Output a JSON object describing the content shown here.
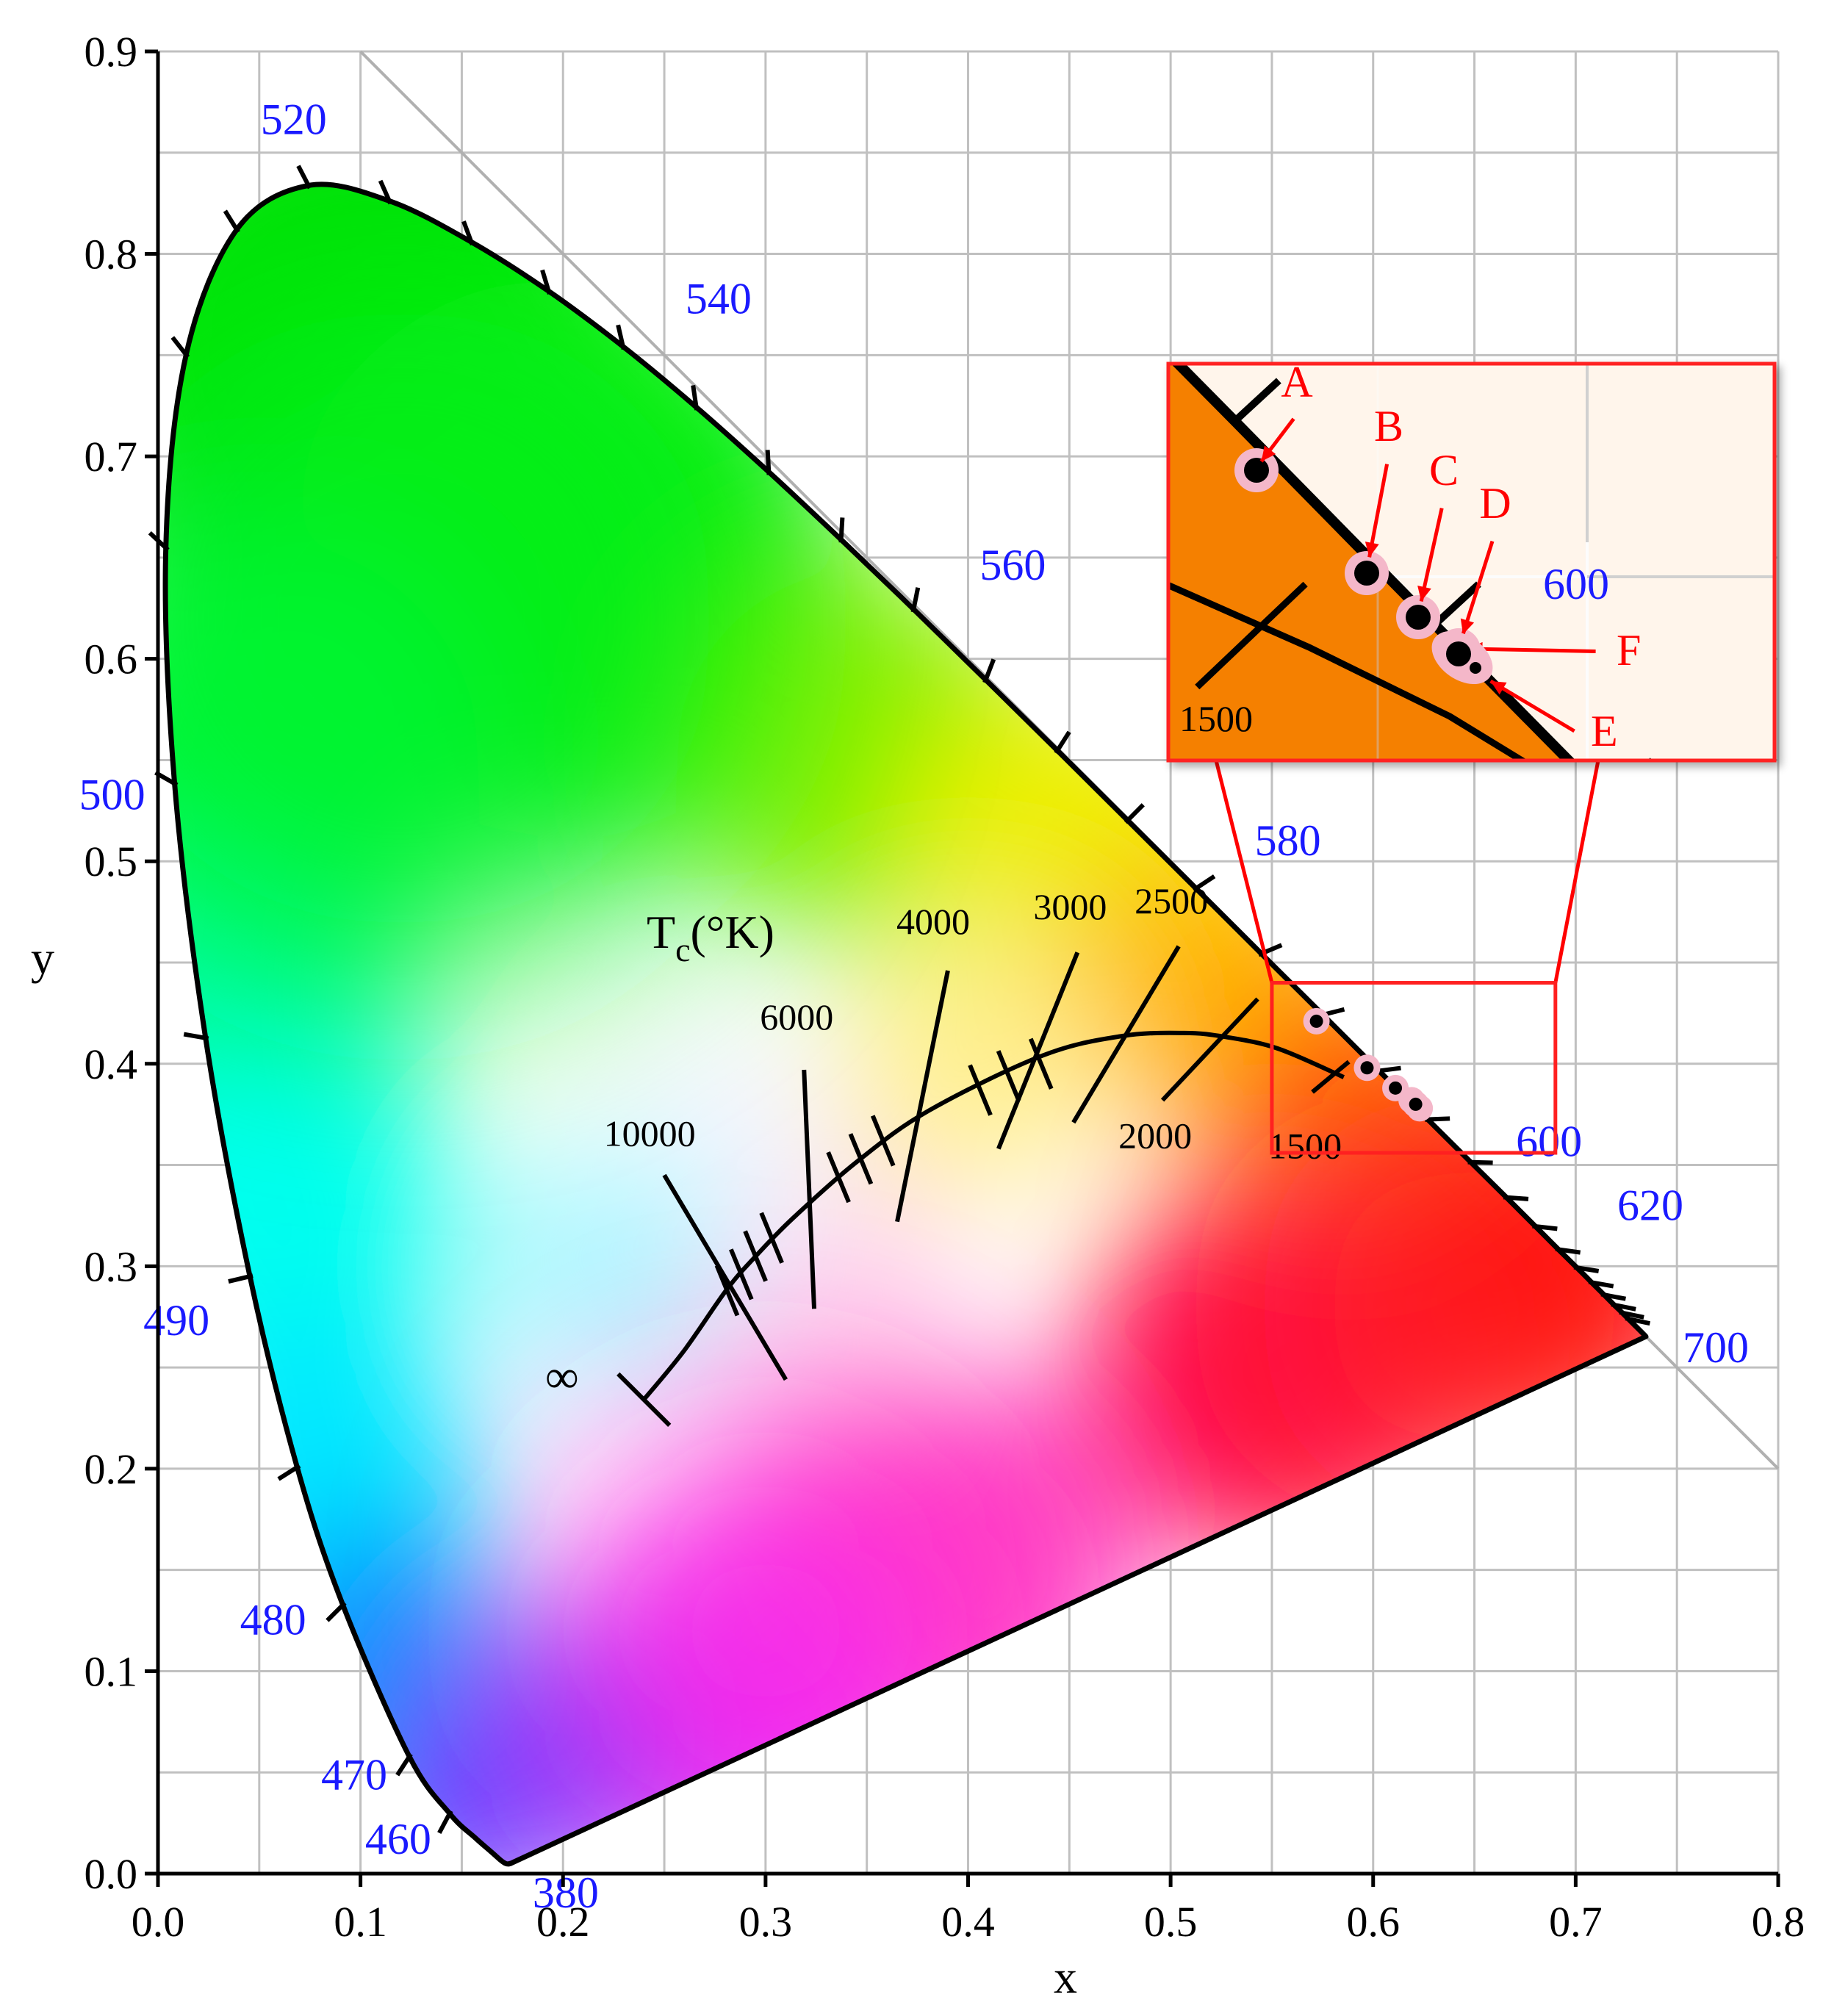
{
  "chart_data": {
    "type": "scatter",
    "title": "",
    "xlabel": "x",
    "ylabel": "y",
    "xlim": [
      0.0,
      0.8
    ],
    "ylim": [
      0.0,
      0.9
    ],
    "x_ticks": [
      "0.0",
      "0.1",
      "0.2",
      "0.3",
      "0.4",
      "0.5",
      "0.6",
      "0.7",
      "0.8"
    ],
    "y_ticks": [
      "0.0",
      "0.1",
      "0.2",
      "0.3",
      "0.4",
      "0.5",
      "0.6",
      "0.7",
      "0.8",
      "0.9"
    ],
    "x_minor_step": 0.05,
    "y_minor_step": 0.05,
    "grid": true,
    "spectral_locus": [
      [
        0.1741,
        0.005
      ],
      [
        0.1738,
        0.0049
      ],
      [
        0.1736,
        0.005
      ],
      [
        0.1733,
        0.0048
      ],
      [
        0.1726,
        0.0048
      ],
      [
        0.1714,
        0.0051
      ],
      [
        0.1689,
        0.0069
      ],
      [
        0.1644,
        0.0109
      ],
      [
        0.1566,
        0.0177
      ],
      [
        0.144,
        0.0297
      ],
      [
        0.1241,
        0.0578
      ],
      [
        0.0913,
        0.1327
      ],
      [
        0.0687,
        0.2007
      ],
      [
        0.0454,
        0.295
      ],
      [
        0.0235,
        0.4127
      ],
      [
        0.0082,
        0.5384
      ],
      [
        0.0039,
        0.6548
      ],
      [
        0.0139,
        0.7502
      ],
      [
        0.0389,
        0.812
      ],
      [
        0.0743,
        0.8338
      ],
      [
        0.1142,
        0.8262
      ],
      [
        0.1547,
        0.8059
      ],
      [
        0.1929,
        0.7816
      ],
      [
        0.2296,
        0.7543
      ],
      [
        0.2658,
        0.7243
      ],
      [
        0.3016,
        0.6923
      ],
      [
        0.3373,
        0.6589
      ],
      [
        0.3731,
        0.6245
      ],
      [
        0.4087,
        0.5896
      ],
      [
        0.4441,
        0.5547
      ],
      [
        0.4788,
        0.5202
      ],
      [
        0.5125,
        0.4866
      ],
      [
        0.5448,
        0.4544
      ],
      [
        0.5752,
        0.4242
      ],
      [
        0.6029,
        0.3965
      ],
      [
        0.627,
        0.3725
      ],
      [
        0.6482,
        0.3514
      ],
      [
        0.6658,
        0.334
      ],
      [
        0.6801,
        0.3197
      ],
      [
        0.6915,
        0.3083
      ],
      [
        0.7006,
        0.2993
      ],
      [
        0.7079,
        0.292
      ],
      [
        0.714,
        0.2859
      ],
      [
        0.719,
        0.2809
      ],
      [
        0.723,
        0.277
      ],
      [
        0.726,
        0.274
      ],
      [
        0.7283,
        0.2717
      ],
      [
        0.73,
        0.27
      ],
      [
        0.7347,
        0.2653
      ]
    ],
    "wavelength_labels": [
      {
        "text": "380",
        "x": 0.1741,
        "y": 0.005
      },
      {
        "text": "460",
        "x": 0.144,
        "y": 0.0297
      },
      {
        "text": "470",
        "x": 0.1241,
        "y": 0.0578
      },
      {
        "text": "480",
        "x": 0.0913,
        "y": 0.1327
      },
      {
        "text": "490",
        "x": 0.0454,
        "y": 0.295
      },
      {
        "text": "500",
        "x": 0.0082,
        "y": 0.5384
      },
      {
        "text": "520",
        "x": 0.0743,
        "y": 0.8338
      },
      {
        "text": "540",
        "x": 0.2296,
        "y": 0.7543
      },
      {
        "text": "560",
        "x": 0.3731,
        "y": 0.6245
      },
      {
        "text": "580",
        "x": 0.5125,
        "y": 0.4866
      },
      {
        "text": "600",
        "x": 0.627,
        "y": 0.3725
      },
      {
        "text": "620",
        "x": 0.6915,
        "y": 0.3083
      },
      {
        "text": "700",
        "x": 0.7347,
        "y": 0.2653
      }
    ],
    "locus_tick_points": [
      [
        0.144,
        0.0297
      ],
      [
        0.1241,
        0.0578
      ],
      [
        0.0913,
        0.1327
      ],
      [
        0.0687,
        0.2007
      ],
      [
        0.0454,
        0.295
      ],
      [
        0.0235,
        0.4127
      ],
      [
        0.0082,
        0.5384
      ],
      [
        0.0039,
        0.6548
      ],
      [
        0.0139,
        0.7502
      ],
      [
        0.0389,
        0.812
      ],
      [
        0.0743,
        0.8338
      ],
      [
        0.1142,
        0.8262
      ],
      [
        0.1547,
        0.8059
      ],
      [
        0.1929,
        0.7816
      ],
      [
        0.2296,
        0.7543
      ],
      [
        0.2658,
        0.7243
      ],
      [
        0.3016,
        0.6923
      ],
      [
        0.3373,
        0.6589
      ],
      [
        0.3731,
        0.6245
      ],
      [
        0.4087,
        0.5896
      ],
      [
        0.4441,
        0.5547
      ],
      [
        0.4788,
        0.5202
      ],
      [
        0.5125,
        0.4866
      ],
      [
        0.5448,
        0.4544
      ],
      [
        0.5752,
        0.4242
      ],
      [
        0.6029,
        0.3965
      ],
      [
        0.627,
        0.3725
      ],
      [
        0.6482,
        0.3514
      ],
      [
        0.6658,
        0.334
      ],
      [
        0.6801,
        0.3197
      ],
      [
        0.6915,
        0.3083
      ],
      [
        0.7006,
        0.2993
      ],
      [
        0.7079,
        0.292
      ],
      [
        0.714,
        0.2859
      ],
      [
        0.719,
        0.2809
      ],
      [
        0.723,
        0.277
      ],
      [
        0.726,
        0.274
      ]
    ],
    "diagonal_line": [
      [
        0.1,
        0.9
      ],
      [
        0.8,
        0.2
      ]
    ],
    "planckian_locus": [
      [
        0.2399,
        0.2341
      ],
      [
        0.2597,
        0.2582
      ],
      [
        0.2807,
        0.2883
      ],
      [
        0.295,
        0.3048
      ],
      [
        0.3135,
        0.3237
      ],
      [
        0.3451,
        0.3516
      ],
      [
        0.3805,
        0.3768
      ],
      [
        0.4369,
        0.4041
      ],
      [
        0.4762,
        0.4137
      ],
      [
        0.5067,
        0.4152
      ],
      [
        0.5267,
        0.4133
      ],
      [
        0.553,
        0.4075
      ],
      [
        0.5855,
        0.3934
      ]
    ],
    "cct_title": "T",
    "cct_title_sub": "c",
    "cct_title_rest": "(°K)",
    "infinity_label": "∞",
    "isotherms": [
      {
        "label": "10000",
        "p1": [
          0.25,
          0.345
        ],
        "p2": [
          0.31,
          0.244
        ]
      },
      {
        "label": "6000",
        "p1": [
          0.319,
          0.397
        ],
        "p2": [
          0.324,
          0.279
        ]
      },
      {
        "label": "4000",
        "p1": [
          0.39,
          0.446
        ],
        "p2": [
          0.365,
          0.322
        ]
      },
      {
        "label": "3000",
        "p1": [
          0.454,
          0.455
        ],
        "p2": [
          0.415,
          0.358
        ]
      },
      {
        "label": "2500",
        "p1": [
          0.504,
          0.458
        ],
        "p2": [
          0.452,
          0.371
        ]
      },
      {
        "label": "2000",
        "p1": [
          0.543,
          0.432
        ],
        "p2": [
          0.496,
          0.382
        ]
      },
      {
        "label": "1500",
        "p1": [
          0.588,
          0.401
        ],
        "p2": [
          0.57,
          0.386
        ]
      }
    ],
    "isotherm_minor": [
      [
        0.281,
        0.288
      ],
      [
        0.288,
        0.296
      ],
      [
        0.295,
        0.305
      ],
      [
        0.303,
        0.314
      ],
      [
        0.336,
        0.344
      ],
      [
        0.347,
        0.353
      ],
      [
        0.358,
        0.362
      ],
      [
        0.406,
        0.387
      ],
      [
        0.42,
        0.394
      ],
      [
        0.436,
        0.4
      ]
    ],
    "points": [
      {
        "name": "A",
        "x": 0.572,
        "y": 0.421
      },
      {
        "name": "B",
        "x": 0.597,
        "y": 0.398
      },
      {
        "name": "C",
        "x": 0.611,
        "y": 0.388
      },
      {
        "name": "D",
        "x": 0.619,
        "y": 0.382
      },
      {
        "name": "E",
        "x": 0.623,
        "y": 0.378
      },
      {
        "name": "F",
        "x": 0.621,
        "y": 0.38
      }
    ],
    "inset": {
      "source_xlim": [
        0.55,
        0.69
      ],
      "source_ylim": [
        0.356,
        0.44
      ],
      "wavelength_label": "600",
      "cct_label": "1500",
      "frame_color": "#ff2020"
    },
    "colors": {
      "locus_stroke": "#000000",
      "wavelength_text": "#1a1aff",
      "point_fill": "#000000",
      "point_halo": "#f4b7c9",
      "label_red": "#ff0000",
      "grid": "#c0c0c0",
      "diagonal": "#b0b0b0",
      "inset_fill": "#f58000"
    }
  }
}
